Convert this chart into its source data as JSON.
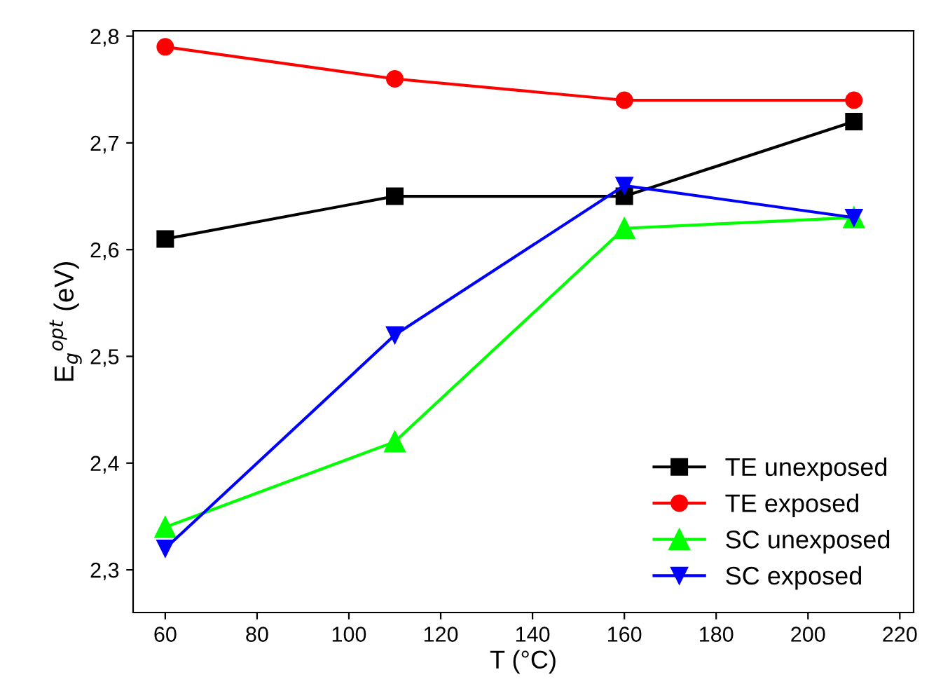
{
  "chart_data": {
    "type": "line",
    "xlabel": "T (°C)",
    "ylabel": "E$_{g}$$^{opt}$ (eV)",
    "x": [
      60,
      110,
      160,
      210
    ],
    "series": [
      {
        "name": "TE unexposed",
        "color": "#000000",
        "marker": "square",
        "values": [
          2.61,
          2.65,
          2.65,
          2.72
        ]
      },
      {
        "name": "TE exposed",
        "color": "#ff0000",
        "marker": "circle",
        "values": [
          2.79,
          2.76,
          2.74,
          2.74
        ]
      },
      {
        "name": "SC unexposed",
        "color": "#00ff00",
        "marker": "triangle",
        "values": [
          2.34,
          2.42,
          2.62,
          2.63
        ]
      },
      {
        "name": "SC exposed",
        "color": "#0000ff",
        "marker": "triangle_down",
        "values": [
          2.32,
          2.52,
          2.66,
          2.63
        ]
      }
    ],
    "xlim": [
      53,
      223
    ],
    "xticks": [
      60,
      80,
      100,
      120,
      140,
      160,
      180,
      200,
      220
    ],
    "ylim": [
      2.26,
      2.805
    ],
    "yticks": [
      {
        "value": 2.3,
        "label": "2,3"
      },
      {
        "value": 2.4,
        "label": "2,4"
      },
      {
        "value": 2.5,
        "label": "2,5"
      },
      {
        "value": 2.6,
        "label": "2,6"
      },
      {
        "value": 2.7,
        "label": "2,7"
      },
      {
        "value": 2.8,
        "label": "2,8"
      }
    ],
    "grid": false,
    "legend": "bottom right",
    "line_style": "solid"
  }
}
